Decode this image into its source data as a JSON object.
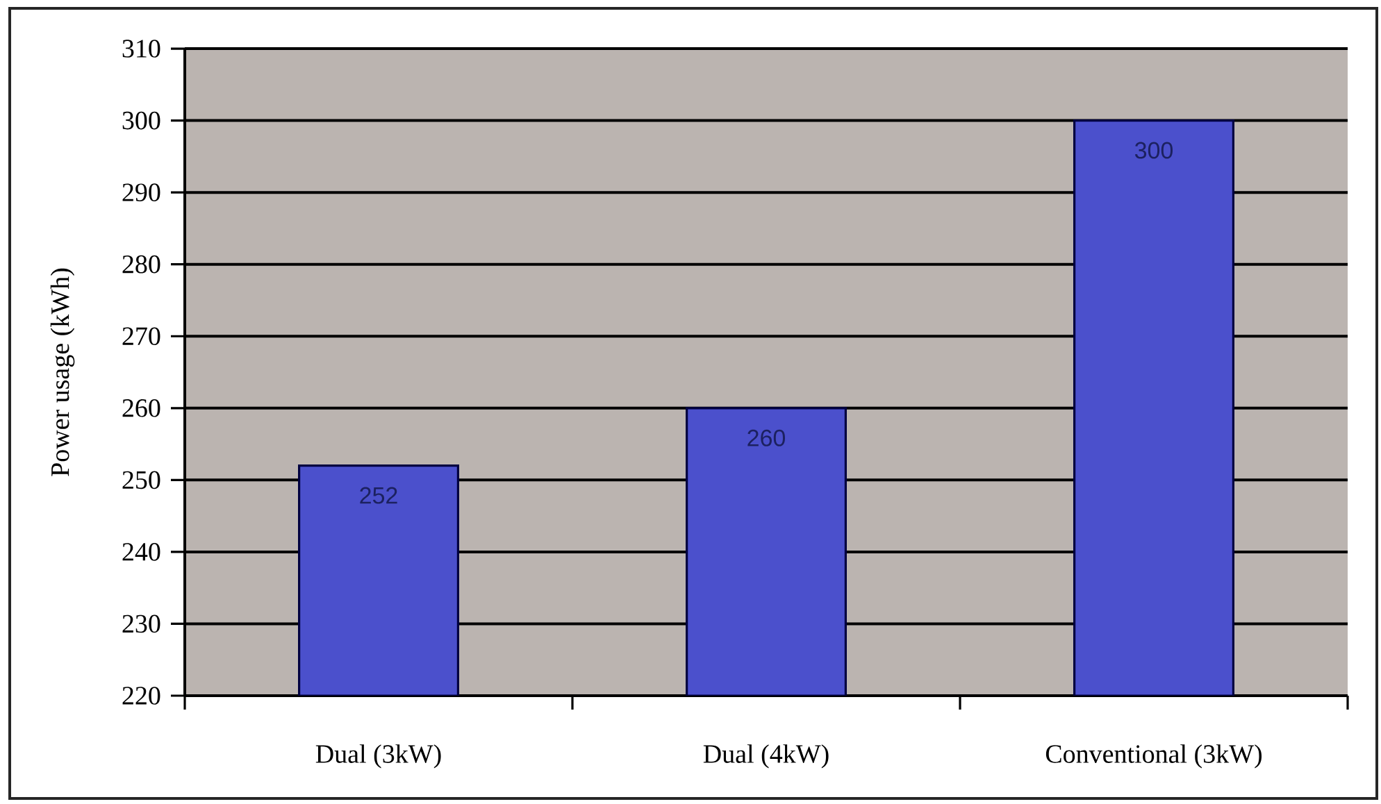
{
  "chart_data": {
    "type": "bar",
    "ylabel": "Power usage (kWh)",
    "categories": [
      "Dual (3kW)",
      "Dual (4kW)",
      "Conventional (3kW)"
    ],
    "values": [
      252,
      260,
      300
    ],
    "color": "#4b50cc",
    "data_labels": true,
    "ylim": [
      220,
      310
    ],
    "yticks": [
      220,
      230,
      240,
      250,
      260,
      270,
      280,
      290,
      300,
      310
    ],
    "grid": "y"
  }
}
